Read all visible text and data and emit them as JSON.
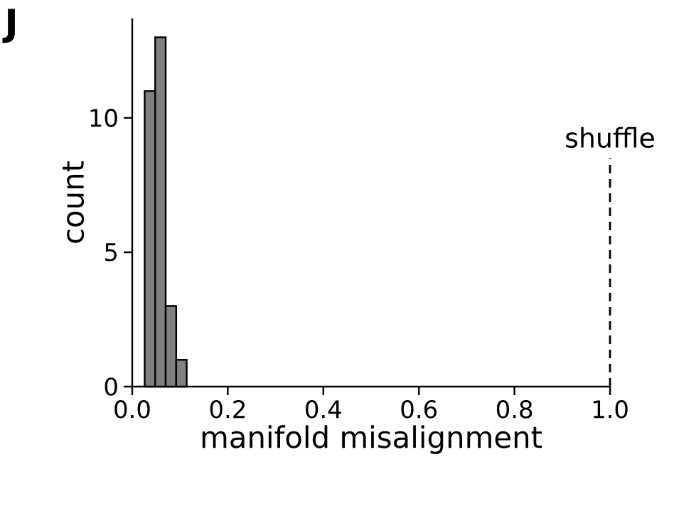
{
  "chart_data": {
    "type": "histogram",
    "xlabel": "manifold misalignment",
    "ylabel": "count",
    "bins": [
      0.026,
      0.048,
      0.07,
      0.092,
      0.114
    ],
    "values": [
      11,
      13,
      3,
      1
    ],
    "color": "#808080",
    "xlim": [
      0,
      1
    ],
    "ylim": [
      0,
      13.7
    ],
    "xticks": [
      {
        "value": 0,
        "label": "0.0"
      },
      {
        "value": 0.2,
        "label": "0.2"
      },
      {
        "value": 0.4,
        "label": "0.4"
      },
      {
        "value": 0.6,
        "label": "0.6"
      },
      {
        "value": 0.8,
        "label": "0.8"
      },
      {
        "value": 1,
        "label": "1.0"
      }
    ],
    "yticks": [
      0,
      5,
      10
    ],
    "ref_lines": [
      {
        "axis": "x",
        "value": 1,
        "label": "shuffle",
        "line_style": "dashed"
      }
    ],
    "annotations": [
      "J"
    ],
    "grid": false
  }
}
